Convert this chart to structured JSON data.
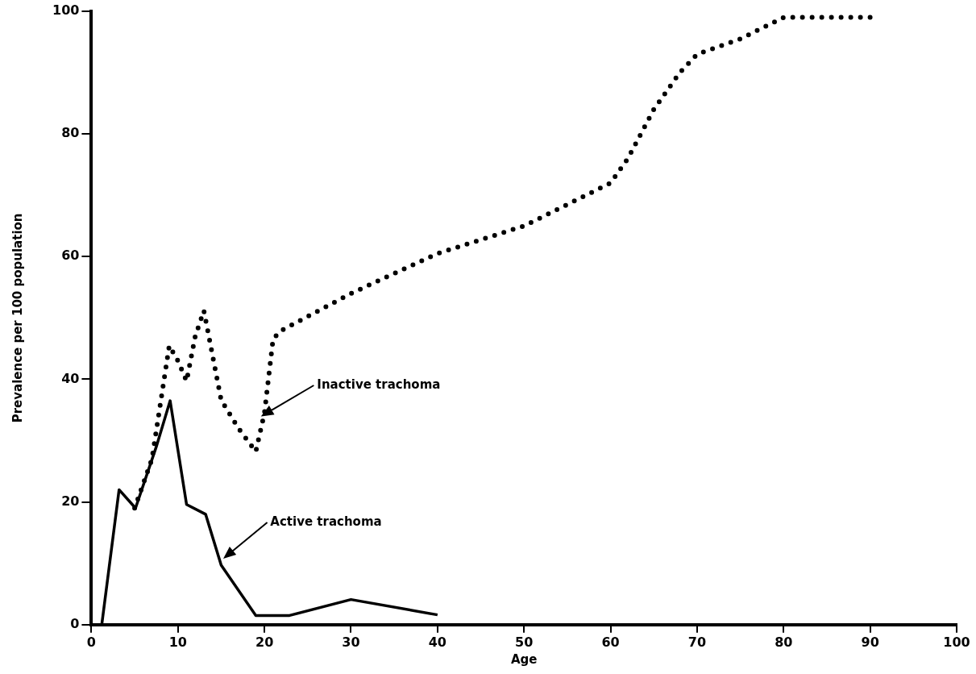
{
  "chart_data": {
    "type": "line",
    "xlabel": "Age",
    "ylabel": "Prevalence per 100 population",
    "xlim": [
      0,
      100
    ],
    "xticks": [
      0,
      10,
      20,
      30,
      40,
      50,
      60,
      70,
      80,
      90,
      100
    ],
    "ylim": [
      0,
      100
    ],
    "yticks": [
      0,
      20,
      40,
      60,
      80,
      100
    ],
    "grid": false,
    "legend": false,
    "marker": "none",
    "series": [
      {
        "color": "#000000",
        "line_style": "solid",
        "x": [
          1.2,
          3.2,
          5.1,
          7.5,
          9.1,
          11,
          13.2,
          15,
          19,
          22.9,
          30,
          40
        ],
        "values": [
          0,
          22,
          19,
          29,
          36.5,
          19.6,
          18,
          9.7,
          1.5,
          1.5,
          4.1,
          1.6
        ]
      },
      {
        "color": "#000000",
        "line_style": "dotted",
        "x": [
          5,
          7,
          9,
          10,
          11,
          12,
          13,
          15,
          17,
          19,
          20,
          21,
          22,
          30,
          40,
          50,
          60,
          62,
          65,
          68,
          70,
          75,
          80,
          85,
          90
        ],
        "values": [
          19,
          27,
          45.5,
          43,
          39.7,
          47,
          51.2,
          36.6,
          32,
          28.2,
          34.5,
          46.6,
          48,
          54,
          60.5,
          65,
          72,
          76,
          84,
          90,
          93,
          95.5,
          99,
          99,
          99
        ]
      }
    ],
    "annotations": [
      "Inactive trachoma",
      "Active trachoma"
    ]
  }
}
